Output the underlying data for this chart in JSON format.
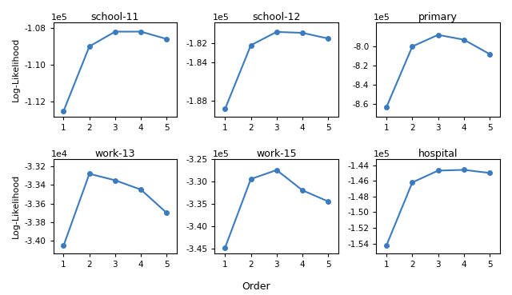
{
  "subplots": [
    {
      "title": "school-11",
      "scale": "1e5",
      "x": [
        1,
        2,
        3,
        4,
        5
      ],
      "y": [
        -1.125,
        -1.09,
        -1.082,
        -1.082,
        -1.086
      ],
      "ylim": [
        -1.128,
        -1.077
      ],
      "yticks": [
        -1.12,
        -1.1,
        -1.08
      ],
      "ytick_labels": [
        "-1.12",
        "-1.10",
        "-1.08"
      ]
    },
    {
      "title": "school-12",
      "scale": "1e5",
      "x": [
        1,
        2,
        3,
        4,
        5
      ],
      "y": [
        -1.889,
        -1.822,
        -1.808,
        -1.809,
        -1.815
      ],
      "ylim": [
        -1.897,
        -1.798
      ],
      "yticks": [
        -1.88,
        -1.84,
        -1.82
      ],
      "ytick_labels": [
        "-1.88",
        "-1.84",
        "-1.82"
      ]
    },
    {
      "title": "primary",
      "scale": "1e5",
      "x": [
        1,
        2,
        3,
        4,
        5
      ],
      "y": [
        -8.63,
        -8.0,
        -7.88,
        -7.93,
        -8.08
      ],
      "ylim": [
        -8.73,
        -7.75
      ],
      "yticks": [
        -8.6,
        -8.4,
        -8.2,
        -8.0
      ],
      "ytick_labels": [
        "-8.6",
        "-8.4",
        "-8.2",
        "-8.0"
      ]
    },
    {
      "title": "work-13",
      "scale": "1e4",
      "x": [
        1,
        2,
        3,
        4,
        5
      ],
      "y": [
        -3.405,
        -3.328,
        -3.335,
        -3.345,
        -3.37
      ],
      "ylim": [
        -3.413,
        -3.312
      ],
      "yticks": [
        -3.4,
        -3.38,
        -3.36,
        -3.34,
        -3.32
      ],
      "ytick_labels": [
        "-3.40",
        "-3.38",
        "-3.36",
        "-3.34",
        "-3.32"
      ]
    },
    {
      "title": "work-15",
      "scale": "1e5",
      "x": [
        1,
        2,
        3,
        4,
        5
      ],
      "y": [
        -3.448,
        -3.295,
        -3.275,
        -3.32,
        -3.345
      ],
      "ylim": [
        -3.46,
        -3.252
      ],
      "yticks": [
        -3.45,
        -3.4,
        -3.35,
        -3.3,
        -3.25
      ],
      "ytick_labels": [
        "-3.45",
        "-3.40",
        "-3.35",
        "-3.30",
        "-3.25"
      ]
    },
    {
      "title": "hospital",
      "scale": "1e5",
      "x": [
        1,
        2,
        3,
        4,
        5
      ],
      "y": [
        -1.542,
        -1.462,
        -1.447,
        -1.446,
        -1.45
      ],
      "ylim": [
        -1.552,
        -1.432
      ],
      "yticks": [
        -1.54,
        -1.52,
        -1.5,
        -1.48,
        -1.46,
        -1.44
      ],
      "ytick_labels": [
        "-1.54",
        "-1.52",
        "-1.50",
        "-1.48",
        "-1.46",
        "-1.44"
      ]
    }
  ],
  "line_color": "#3a7abf",
  "marker": "o",
  "markersize": 4,
  "linewidth": 1.5,
  "xlabel": "Order",
  "ylabel": "Log-Likelihood",
  "fig_width": 6.4,
  "fig_height": 3.69,
  "dpi": 100,
  "tick_fontsize": 7.5,
  "label_fontsize": 8,
  "title_fontsize": 9,
  "scale_fontsize": 8
}
